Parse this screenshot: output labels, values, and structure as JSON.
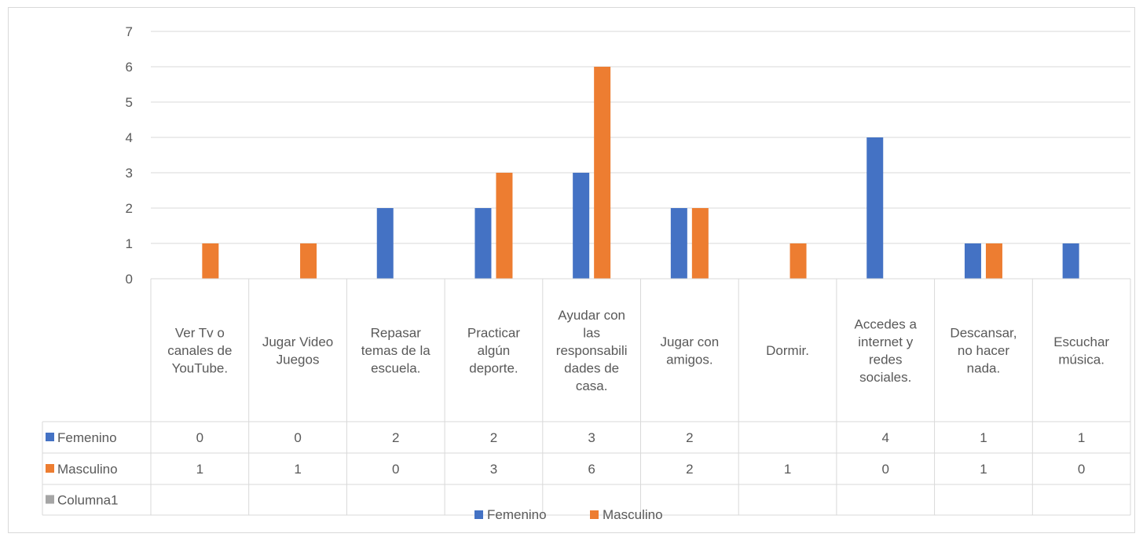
{
  "chart_data": {
    "type": "bar",
    "categories": [
      "Ver Tv o canales de YouTube.",
      "Jugar Video Juegos",
      "Repasar temas de la escuela.",
      "Practicar algún deporte.",
      "Ayudar con las responsabilidades de casa.",
      "Jugar con amigos.",
      "Dormir.",
      "Accedes a internet y redes sociales.",
      "Descansar, no hacer nada.",
      "Escuchar música."
    ],
    "category_lines": [
      [
        "Ver Tv o",
        "canales de",
        "YouTube."
      ],
      [
        "Jugar Video",
        "Juegos"
      ],
      [
        "Repasar",
        "temas de la",
        "escuela."
      ],
      [
        "Practicar",
        "algún",
        "deporte."
      ],
      [
        "Ayudar con",
        "las",
        "responsabili",
        "dades de",
        "casa."
      ],
      [
        "Jugar con",
        "amigos."
      ],
      [
        "Dormir."
      ],
      [
        "Accedes a",
        "internet y",
        "redes",
        "sociales."
      ],
      [
        "Descansar,",
        "no hacer",
        "nada."
      ],
      [
        "Escuchar",
        "música."
      ]
    ],
    "series": [
      {
        "name": "Femenino",
        "color": "#4472c4",
        "values": [
          0,
          0,
          2,
          2,
          3,
          2,
          null,
          4,
          1,
          1
        ]
      },
      {
        "name": "Masculino",
        "color": "#ed7d31",
        "values": [
          1,
          1,
          0,
          3,
          6,
          2,
          1,
          0,
          1,
          0
        ]
      },
      {
        "name": "Columna1",
        "color": "#a5a5a5",
        "values": [
          null,
          null,
          null,
          null,
          null,
          null,
          null,
          null,
          null,
          null
        ]
      }
    ],
    "ylim": [
      0,
      7
    ],
    "y_ticks": [
      "0",
      "1",
      "2",
      "3",
      "4",
      "5",
      "6",
      "7"
    ],
    "grid": true,
    "legend": {
      "placement": "bottom",
      "entries": [
        "Femenino",
        "Masculino"
      ]
    },
    "data_table": true
  }
}
